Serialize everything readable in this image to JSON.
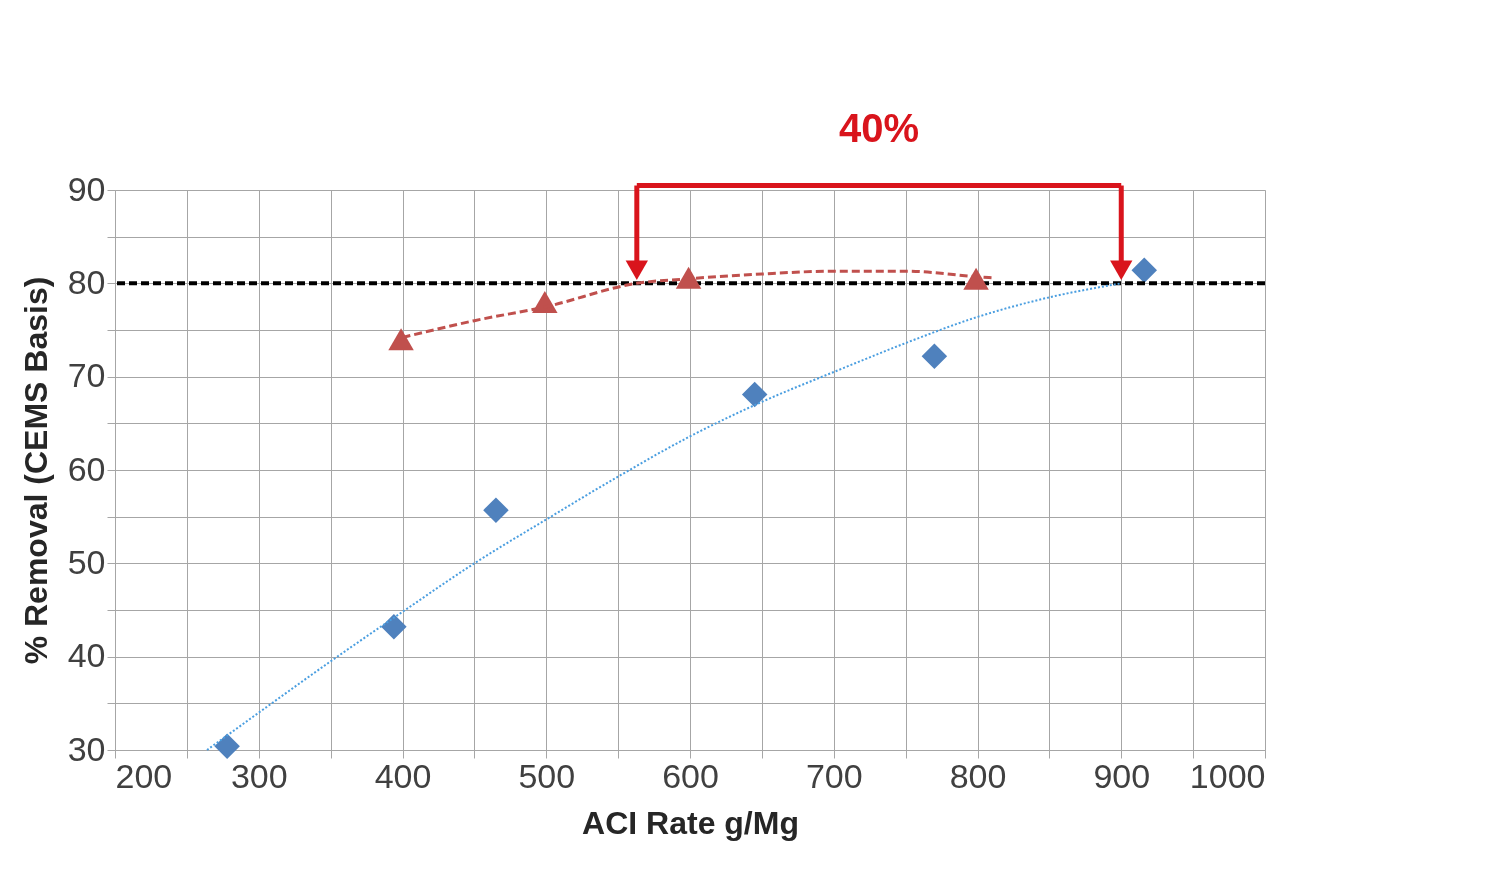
{
  "chart_data": {
    "type": "scatter",
    "xlabel": "ACI Rate g/Mg",
    "ylabel": "% Removal (CEMS Basis)",
    "xlim": [
      200,
      1000
    ],
    "ylim": [
      30,
      90
    ],
    "xticks": [
      200,
      {
        "value": 250,
        "label": null
      },
      300,
      {
        "value": 350,
        "label": null
      },
      400,
      {
        "value": 450,
        "label": null
      },
      500,
      {
        "value": 550,
        "label": null
      },
      600,
      {
        "value": 650,
        "label": null
      },
      700,
      {
        "value": 750,
        "label": null
      },
      800,
      {
        "value": 850,
        "label": null
      },
      900,
      {
        "value": 950,
        "label": null
      },
      1000
    ],
    "yticks": [
      30,
      {
        "value": 35,
        "label": null
      },
      40,
      {
        "value": 45,
        "label": null
      },
      50,
      {
        "value": 55,
        "label": null
      },
      60,
      {
        "value": 65,
        "label": null
      },
      70,
      {
        "value": 75,
        "label": null
      },
      80,
      {
        "value": 85,
        "label": null
      },
      90
    ],
    "grid": true,
    "series": [
      {
        "marker": "diamond",
        "color": "#4f81bd",
        "x": [
          278,
          394,
          465,
          645,
          770,
          916
        ],
        "values": [
          30.4,
          43.2,
          55.7,
          68.1,
          72.2,
          81.4
        ]
      },
      {
        "marker": "triangle",
        "color": "#c0504d",
        "x": [
          399,
          499,
          599,
          799
        ],
        "values": [
          74.0,
          78.0,
          80.6,
          80.5
        ]
      },
      {
        "type": "line",
        "line_style": "dotted",
        "color": "#4a9ee0",
        "x": [
          264,
          300,
          350,
          400,
          450,
          500,
          550,
          600,
          650,
          700,
          750,
          800,
          850,
          900
        ],
        "values": [
          30,
          34,
          39.5,
          44.8,
          50,
          54.7,
          59.3,
          63.6,
          67.3,
          70.5,
          73.6,
          76.4,
          78.5,
          80.0
        ]
      },
      {
        "type": "line",
        "line_style": "dashed",
        "color": "#c0504d",
        "x": [
          400,
          450,
          500,
          563,
          600,
          650,
          700,
          750,
          800,
          810
        ],
        "values": [
          74.2,
          76.0,
          77.5,
          80.0,
          80.5,
          81.0,
          81.3,
          81.3,
          80.7,
          80.6
        ]
      }
    ],
    "ref_lines": [
      {
        "axis": "y",
        "value": 80,
        "color": "#000000",
        "line_style": "dashed"
      }
    ],
    "annotations": [
      "40%"
    ]
  }
}
